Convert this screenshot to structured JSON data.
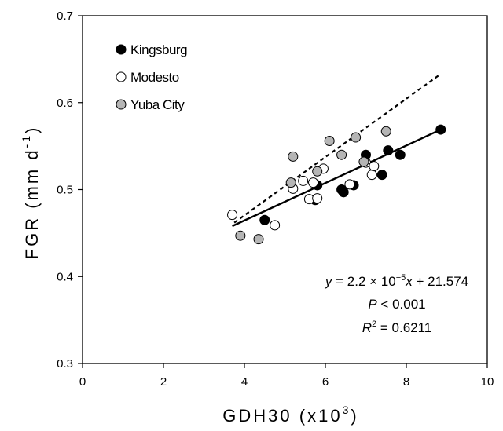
{
  "chart_data": {
    "type": "scatter",
    "xlabel": "GDH30 (x10",
    "xlabel_exp": "3",
    "xlabel_end": ")",
    "ylabel": "FGR (mm d",
    "ylabel_exp": "-1",
    "ylabel_end": ")",
    "xlim": [
      0,
      10
    ],
    "ylim": [
      0.3,
      0.7
    ],
    "xticks": [
      "0",
      "2",
      "4",
      "6",
      "8",
      "10"
    ],
    "yticks": [
      "0.3",
      "0.4",
      "0.5",
      "0.6",
      "0.7"
    ],
    "xtick_values": [
      0,
      2,
      4,
      6,
      8,
      10
    ],
    "ytick_values": [
      0.3,
      0.4,
      0.5,
      0.6,
      0.7
    ],
    "grid": false,
    "legend_position": "top-left",
    "series": [
      {
        "name": "Kingsburg",
        "fill": "#000000",
        "points": [
          [
            4.5,
            0.465
          ],
          [
            5.75,
            0.488
          ],
          [
            5.8,
            0.505
          ],
          [
            6.4,
            0.5
          ],
          [
            6.45,
            0.497
          ],
          [
            6.7,
            0.505
          ],
          [
            7.0,
            0.54
          ],
          [
            7.4,
            0.517
          ],
          [
            7.55,
            0.545
          ],
          [
            7.85,
            0.54
          ],
          [
            8.85,
            0.569
          ]
        ]
      },
      {
        "name": "Modesto",
        "fill": "#ffffff",
        "points": [
          [
            3.7,
            0.471
          ],
          [
            4.75,
            0.459
          ],
          [
            5.2,
            0.501
          ],
          [
            5.45,
            0.51
          ],
          [
            5.6,
            0.489
          ],
          [
            5.7,
            0.508
          ],
          [
            5.8,
            0.49
          ],
          [
            5.95,
            0.524
          ],
          [
            6.6,
            0.506
          ],
          [
            7.0,
            0.531
          ],
          [
            7.15,
            0.517
          ],
          [
            7.2,
            0.527
          ]
        ]
      },
      {
        "name": "Yuba City",
        "fill": "#b5b5b5",
        "points": [
          [
            3.9,
            0.447
          ],
          [
            4.35,
            0.443
          ],
          [
            5.15,
            0.508
          ],
          [
            5.2,
            0.538
          ],
          [
            5.8,
            0.521
          ],
          [
            6.1,
            0.556
          ],
          [
            6.4,
            0.54
          ],
          [
            6.75,
            0.56
          ],
          [
            6.95,
            0.532
          ],
          [
            7.5,
            0.567
          ]
        ]
      }
    ],
    "lines": [
      {
        "style": "solid",
        "points": [
          [
            3.7,
            0.458
          ],
          [
            8.85,
            0.569
          ]
        ]
      },
      {
        "style": "dashed",
        "points": [
          [
            3.75,
            0.462
          ],
          [
            8.85,
            0.633
          ]
        ]
      }
    ],
    "annotations": {
      "eq_prefix": "y",
      "eq_mid": " = 2.2 × 10",
      "eq_exp": "−5",
      "eq_var": "x",
      "eq_end": " + 21.574",
      "p_var": "P",
      "p_rest": " < 0.001",
      "r_var": "R",
      "r_exp": "2",
      "r_rest": " = 0.6211"
    }
  }
}
